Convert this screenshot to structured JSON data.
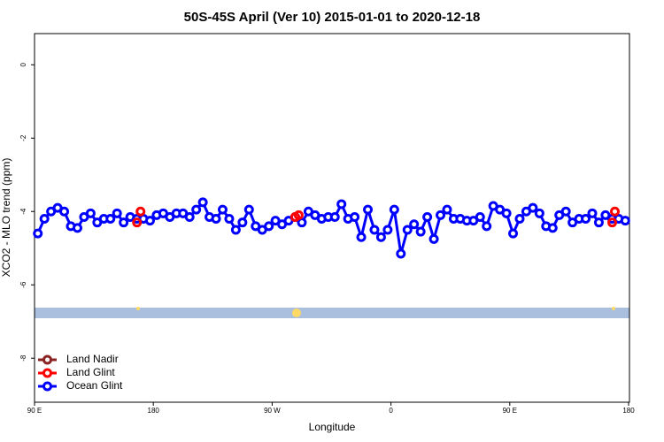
{
  "chart_data": {
    "type": "line",
    "title": "50S-45S April (Ver 10)   2015-01-01 to 2020-12-18",
    "x_label": "Longitude",
    "y_label": "XCO2 - MLO trend (ppm)",
    "xlim": [
      90,
      540
    ],
    "ylim": [
      -9.2,
      0.85
    ],
    "xticks": [
      {
        "value": 90,
        "label": "90 E"
      },
      180,
      {
        "value": 270,
        "label": "90 W"
      },
      {
        "value": 360,
        "label": "0"
      },
      {
        "value": 450,
        "label": "90 E"
      },
      {
        "value": 540,
        "label": "180"
      }
    ],
    "yticks": [
      0,
      -2,
      -4,
      -6,
      -8
    ],
    "legend": "bottom-left",
    "series": [
      {
        "name": "Land Nadir",
        "color": "#8b2323",
        "x": [],
        "values": []
      },
      {
        "name": "Land Glint",
        "color": "#ff0000",
        "x": [
          167.6,
          170.3,
          287.4,
          290.1,
          527.6,
          529.6
        ],
        "values": [
          -4.3,
          -4.0,
          -4.15,
          -4.1,
          -4.3,
          -4.0
        ]
      },
      {
        "name": "Ocean Glint",
        "color": "#0000ff",
        "x": [
          92.5,
          97.5,
          102.5,
          107.5,
          112.5,
          117.5,
          122.5,
          127.5,
          132.5,
          137.5,
          142.5,
          147.5,
          152.5,
          157.5,
          162.5,
          167.5,
          172.5,
          177.5,
          182.5,
          187.5,
          192.5,
          197.5,
          202.5,
          207.5,
          212.5,
          217.5,
          222.5,
          227.5,
          232.5,
          237.5,
          242.5,
          247.5,
          252.5,
          257.5,
          262.5,
          267.5,
          272.5,
          277.5,
          282.5,
          287.5,
          292.5,
          297.5,
          302.5,
          307.5,
          312.5,
          317.5,
          322.5,
          327.5,
          332.5,
          337.5,
          342.5,
          347.5,
          352.5,
          357.5,
          362.5,
          367.5,
          372.5,
          377.5,
          382.5,
          387.5,
          392.5,
          397.5,
          402.5,
          407.5,
          412.5,
          417.5,
          422.5,
          427.5,
          432.5,
          437.5,
          442.5,
          447.5,
          452.5,
          457.5,
          462.5,
          467.5,
          472.5,
          477.5,
          482.5,
          487.5,
          492.5,
          497.5,
          502.5,
          507.5,
          512.5,
          517.5,
          522.5,
          527.5,
          532.5,
          537.5
        ],
        "values": [
          -4.6,
          -4.2,
          -4.0,
          -3.9,
          -4.0,
          -4.4,
          -4.45,
          -4.15,
          -4.05,
          -4.3,
          -4.2,
          -4.2,
          -4.05,
          -4.3,
          -4.15,
          -4.2,
          -4.2,
          -4.25,
          -4.1,
          -4.05,
          -4.15,
          -4.05,
          -4.05,
          -4.15,
          -3.95,
          -3.75,
          -4.15,
          -4.2,
          -3.95,
          -4.2,
          -4.5,
          -4.3,
          -3.95,
          -4.4,
          -4.5,
          -4.4,
          -4.25,
          -4.35,
          -4.25,
          -4.15,
          -4.3,
          -4.0,
          -4.1,
          -4.2,
          -4.15,
          -4.15,
          -3.8,
          -4.2,
          -4.15,
          -4.7,
          -3.95,
          -4.5,
          -4.7,
          -4.5,
          -3.95,
          -5.15,
          -4.5,
          -4.35,
          -4.55,
          -4.15,
          -4.75,
          -4.1,
          -3.95,
          -4.2,
          -4.2,
          -4.25,
          -4.25,
          -4.15,
          -4.4,
          -3.85,
          -3.95,
          -4.05,
          -4.6,
          -4.2,
          -4.0,
          -3.9,
          -4.05,
          -4.4,
          -4.45,
          -4.1,
          -4.0,
          -4.3,
          -4.2,
          -4.2,
          -4.05,
          -4.3,
          -4.1,
          -4.2,
          -4.2,
          -4.25
        ]
      }
    ]
  }
}
